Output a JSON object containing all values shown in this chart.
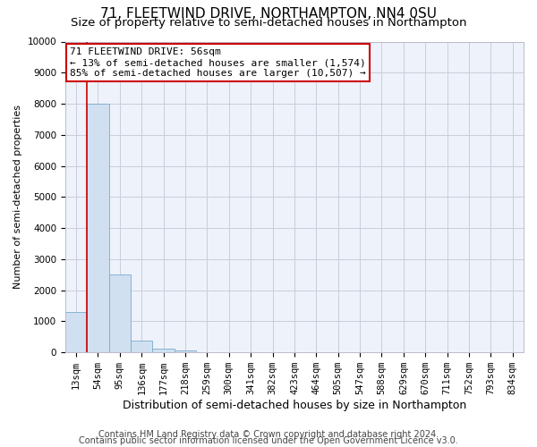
{
  "title": "71, FLEETWIND DRIVE, NORTHAMPTON, NN4 0SU",
  "subtitle": "Size of property relative to semi-detached houses in Northampton",
  "bar_labels": [
    "13sqm",
    "54sqm",
    "95sqm",
    "136sqm",
    "177sqm",
    "218sqm",
    "259sqm",
    "300sqm",
    "341sqm",
    "382sqm",
    "423sqm",
    "464sqm",
    "505sqm",
    "547sqm",
    "588sqm",
    "629sqm",
    "670sqm",
    "711sqm",
    "752sqm",
    "793sqm",
    "834sqm"
  ],
  "bar_values": [
    1300,
    8000,
    2500,
    380,
    120,
    60,
    0,
    0,
    0,
    0,
    0,
    0,
    0,
    0,
    0,
    0,
    0,
    0,
    0,
    0,
    0
  ],
  "bar_color": "#d0e0f0",
  "bar_edge_color": "#7aaacc",
  "property_line_color": "#cc0000",
  "annotation_title": "71 FLEETWIND DRIVE: 56sqm",
  "annotation_line1": "← 13% of semi-detached houses are smaller (1,574)",
  "annotation_line2": "85% of semi-detached houses are larger (10,507) →",
  "annotation_box_color": "#ffffff",
  "annotation_box_edge": "#cc0000",
  "xlabel": "Distribution of semi-detached houses by size in Northampton",
  "ylabel": "Number of semi-detached properties",
  "ylim": [
    0,
    10000
  ],
  "yticks": [
    0,
    1000,
    2000,
    3000,
    4000,
    5000,
    6000,
    7000,
    8000,
    9000,
    10000
  ],
  "footer1": "Contains HM Land Registry data © Crown copyright and database right 2024.",
  "footer2": "Contains public sector information licensed under the Open Government Licence v3.0.",
  "bg_color": "#ffffff",
  "plot_bg_color": "#eef2fa",
  "grid_color": "#ccccdd",
  "title_fontsize": 11,
  "subtitle_fontsize": 9.5,
  "xlabel_fontsize": 9,
  "ylabel_fontsize": 8,
  "tick_fontsize": 7.5,
  "footer_fontsize": 7,
  "annot_fontsize": 8
}
